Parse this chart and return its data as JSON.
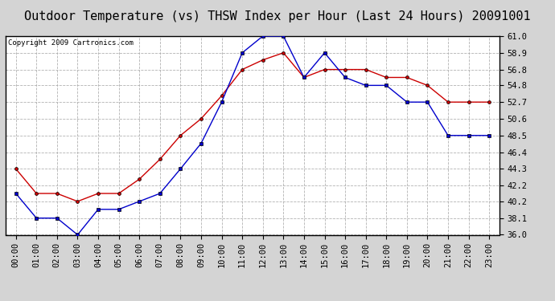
{
  "title": "Outdoor Temperature (vs) THSW Index per Hour (Last 24 Hours) 20091001",
  "copyright": "Copyright 2009 Cartronics.com",
  "hours": [
    0,
    1,
    2,
    3,
    4,
    5,
    6,
    7,
    8,
    9,
    10,
    11,
    12,
    13,
    14,
    15,
    16,
    17,
    18,
    19,
    20,
    21,
    22,
    23
  ],
  "temp_red": [
    44.3,
    41.2,
    41.2,
    40.2,
    41.2,
    41.2,
    43.0,
    45.5,
    48.5,
    50.6,
    53.5,
    56.8,
    58.0,
    58.9,
    55.8,
    56.8,
    56.8,
    56.8,
    55.8,
    55.8,
    54.8,
    52.7,
    52.7,
    52.7
  ],
  "thsw_blue": [
    41.2,
    38.1,
    38.1,
    36.0,
    39.2,
    39.2,
    40.2,
    41.2,
    44.3,
    47.5,
    52.7,
    58.9,
    61.0,
    61.0,
    55.8,
    58.9,
    55.8,
    54.8,
    54.8,
    52.7,
    52.7,
    48.5,
    48.5,
    48.5
  ],
  "ylim_min": 36.0,
  "ylim_max": 61.0,
  "yticks": [
    36.0,
    38.1,
    40.2,
    42.2,
    44.3,
    46.4,
    48.5,
    50.6,
    52.7,
    54.8,
    56.8,
    58.9,
    61.0
  ],
  "bg_color": "#d4d4d4",
  "plot_bg": "#ffffff",
  "red_color": "#cc0000",
  "blue_color": "#0000cc",
  "grid_color": "#aaaaaa",
  "title_fontsize": 11,
  "tick_fontsize": 7.5,
  "copyright_fontsize": 6.5
}
